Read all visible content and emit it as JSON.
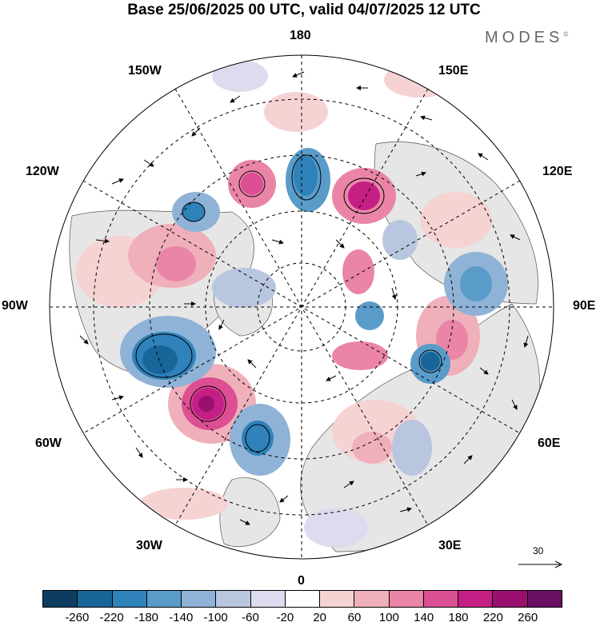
{
  "title": "Base 25/06/2025 00 UTC, valid 04/07/2025 12 UTC",
  "brand": "MODES",
  "brand_mark": "©",
  "longitude_labels": {
    "top": "180",
    "bottom": "0",
    "left": "90W",
    "right": "90E",
    "upper_left_outer": "150W",
    "upper_left_inner": "120W",
    "upper_right_outer": "150E",
    "upper_right_inner": "120E",
    "lower_left_inner": "60W",
    "lower_left_outer": "30W",
    "lower_right_inner": "60E",
    "lower_right_outer": "30E"
  },
  "reference_vector": {
    "label": "30"
  },
  "colorbar": {
    "colors": [
      "#0d3c61",
      "#18659a",
      "#2f82ba",
      "#5a9cc9",
      "#8fb3d6",
      "#b9c6e0",
      "#dcdcee",
      "#ffffff",
      "#f6d3d3",
      "#efb0bb",
      "#ea85a7",
      "#dd4f93",
      "#c41f84",
      "#99106f",
      "#6a0f63"
    ],
    "ticks": [
      "-260",
      "-220",
      "-180",
      "-140",
      "-100",
      "-60",
      "-20",
      "20",
      "60",
      "100",
      "140",
      "180",
      "220",
      "260"
    ]
  },
  "colors": {
    "land": "#e6e6e6",
    "ocean": "#ffffff"
  }
}
